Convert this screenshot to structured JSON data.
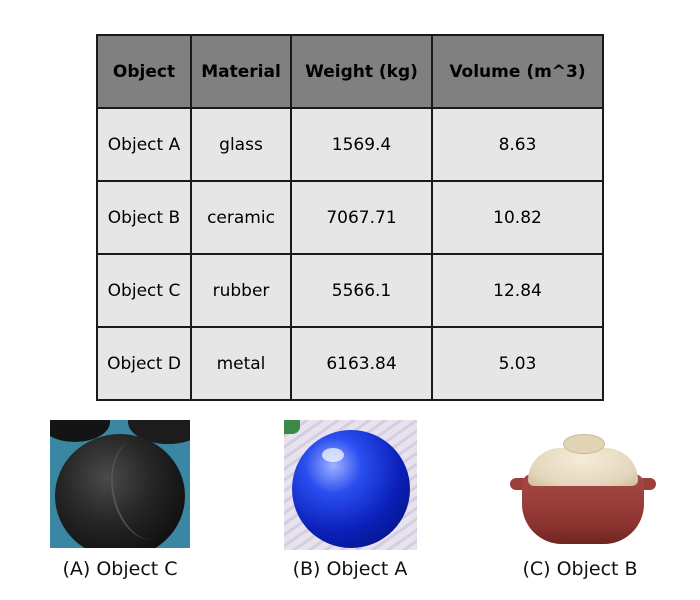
{
  "table": {
    "headers": [
      "Object",
      "Material",
      "Weight (kg)",
      "Volume (m^3)"
    ],
    "rows": [
      [
        "Object A",
        "glass",
        "1569.4",
        "8.63"
      ],
      [
        "Object B",
        "ceramic",
        "7067.71",
        "10.82"
      ],
      [
        "Object C",
        "rubber",
        "5566.1",
        "12.84"
      ],
      [
        "Object D",
        "metal",
        "6163.84",
        "5.03"
      ]
    ],
    "header_bg": "#808080",
    "cell_bg": "#e6e6e6"
  },
  "photos": [
    {
      "caption": "(A) Object C",
      "subject": "black rubber balls"
    },
    {
      "caption": "(B) Object A",
      "subject": "blue glass sphere"
    },
    {
      "caption": "(C) Object B",
      "subject": "red ceramic pot with cream lid"
    }
  ]
}
